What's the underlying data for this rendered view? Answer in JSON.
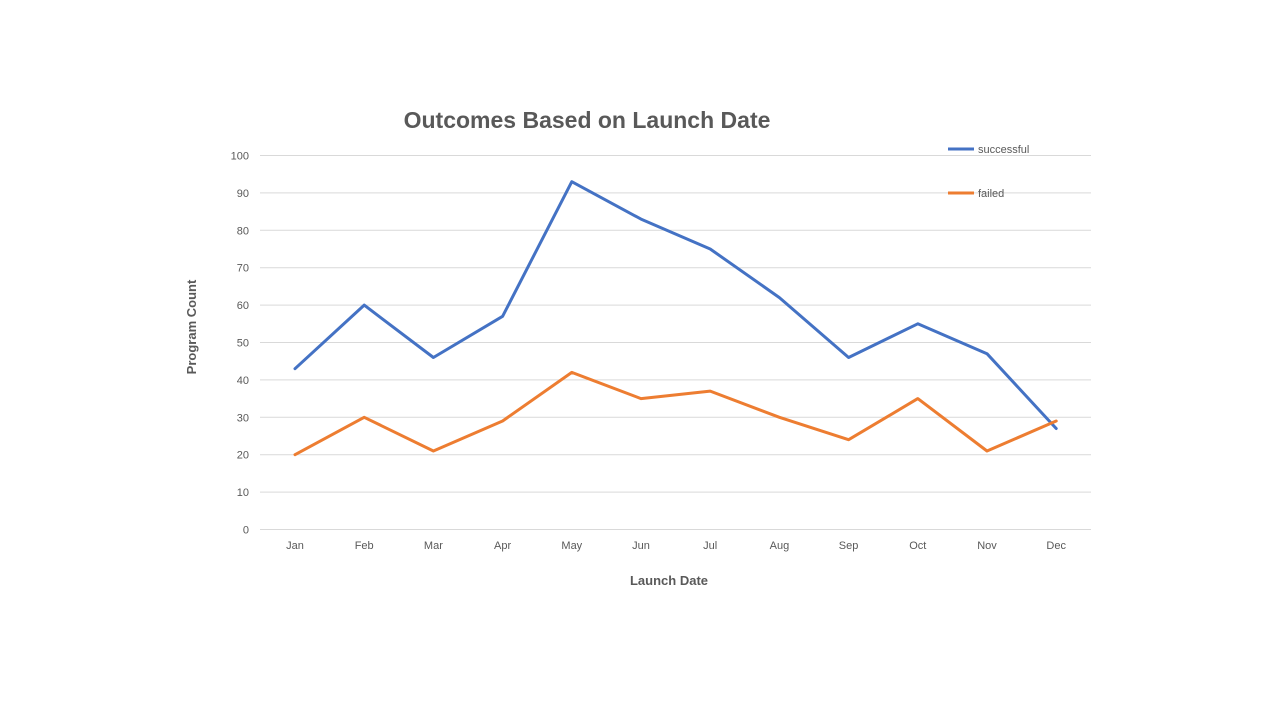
{
  "chart_data": {
    "type": "line",
    "title": "Outcomes Based on Launch Date",
    "xlabel": "Launch Date",
    "ylabel": "Program Count",
    "categories": [
      "Jan",
      "Feb",
      "Mar",
      "Apr",
      "May",
      "Jun",
      "Jul",
      "Aug",
      "Sep",
      "Oct",
      "Nov",
      "Dec"
    ],
    "ylim": [
      0,
      100
    ],
    "yticks": [
      0,
      10,
      20,
      30,
      40,
      50,
      60,
      70,
      80,
      90,
      100
    ],
    "grid": true,
    "legend_position": "top-right",
    "series": [
      {
        "name": "successful",
        "color": "#4472c4",
        "values": [
          43,
          60,
          46,
          57,
          93,
          83,
          75,
          62,
          46,
          55,
          47,
          27
        ]
      },
      {
        "name": "failed",
        "color": "#ed7d31",
        "values": [
          20,
          30,
          21,
          29,
          42,
          35,
          37,
          30,
          24,
          35,
          21,
          29
        ]
      }
    ]
  }
}
